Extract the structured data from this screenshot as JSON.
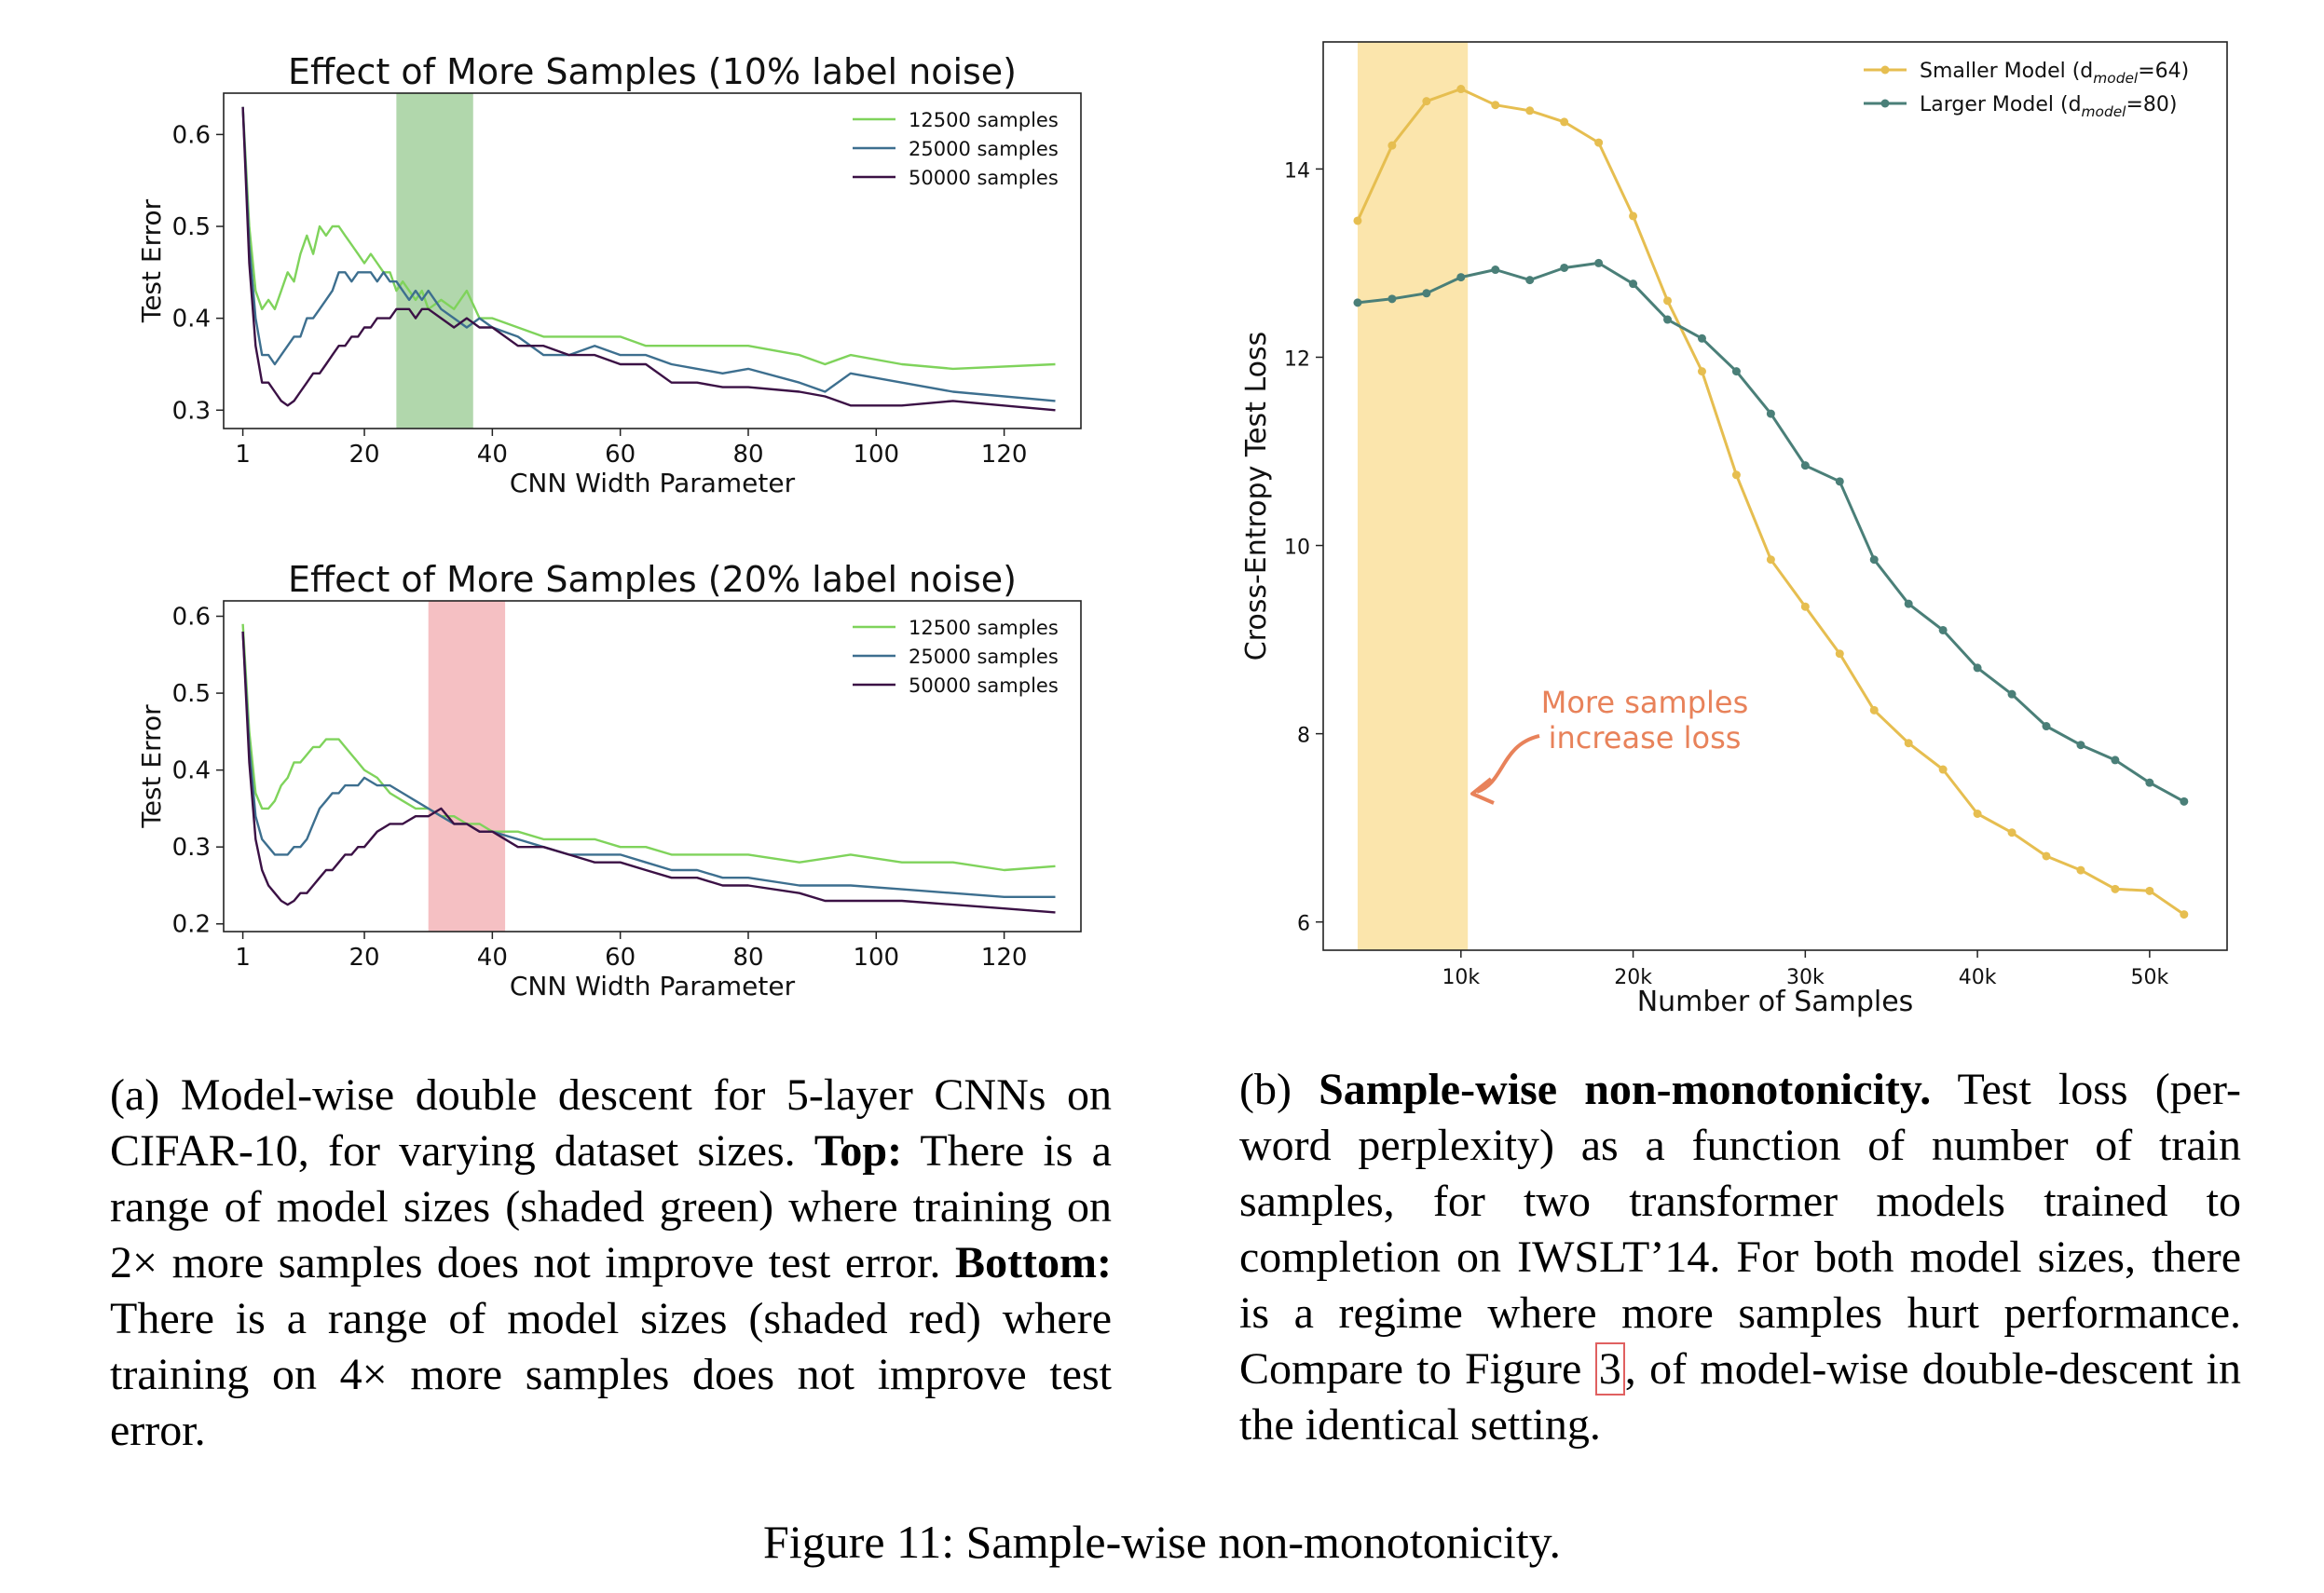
{
  "chart_data": [
    {
      "type": "line",
      "title": "Effect of More Samples (10% label noise)",
      "xlabel": "CNN Width Parameter",
      "ylabel": "Test Error",
      "xlim": [
        -2,
        132
      ],
      "ylim": [
        0.28,
        0.645
      ],
      "xticks": [
        1,
        20,
        40,
        60,
        80,
        100,
        120
      ],
      "yticks": [
        0.3,
        0.4,
        0.5,
        0.6
      ],
      "legend": "top-right",
      "shaded_region": {
        "x": [
          25,
          37
        ],
        "color": "#a9d3a3"
      },
      "series": [
        {
          "name": "12500 samples",
          "color": "#7fd35b",
          "x": [
            1,
            2,
            3,
            4,
            5,
            6,
            7,
            8,
            9,
            10,
            11,
            12,
            13,
            14,
            15,
            16,
            17,
            18,
            19,
            20,
            21,
            22,
            23,
            24,
            25,
            26,
            27,
            28,
            29,
            30,
            32,
            34,
            36,
            38,
            40,
            44,
            48,
            52,
            56,
            60,
            64,
            68,
            72,
            76,
            80,
            88,
            92,
            96,
            104,
            112,
            128
          ],
          "y": [
            0.63,
            0.5,
            0.43,
            0.41,
            0.42,
            0.41,
            0.43,
            0.45,
            0.44,
            0.47,
            0.49,
            0.47,
            0.5,
            0.49,
            0.5,
            0.5,
            0.49,
            0.48,
            0.47,
            0.46,
            0.47,
            0.46,
            0.45,
            0.45,
            0.43,
            0.44,
            0.43,
            0.42,
            0.43,
            0.41,
            0.42,
            0.41,
            0.43,
            0.4,
            0.4,
            0.39,
            0.38,
            0.38,
            0.38,
            0.38,
            0.37,
            0.37,
            0.37,
            0.37,
            0.37,
            0.36,
            0.35,
            0.36,
            0.35,
            0.345,
            0.35
          ]
        },
        {
          "name": "25000 samples",
          "color": "#3d6f8f",
          "x": [
            1,
            2,
            3,
            4,
            5,
            6,
            7,
            8,
            9,
            10,
            11,
            12,
            13,
            14,
            15,
            16,
            17,
            18,
            19,
            20,
            21,
            22,
            23,
            24,
            25,
            26,
            27,
            28,
            29,
            30,
            32,
            34,
            36,
            38,
            40,
            44,
            48,
            52,
            56,
            60,
            64,
            68,
            72,
            76,
            80,
            88,
            92,
            96,
            104,
            112,
            128
          ],
          "y": [
            0.63,
            0.48,
            0.4,
            0.36,
            0.36,
            0.35,
            0.36,
            0.37,
            0.38,
            0.38,
            0.4,
            0.4,
            0.41,
            0.42,
            0.43,
            0.45,
            0.45,
            0.44,
            0.45,
            0.45,
            0.45,
            0.44,
            0.45,
            0.44,
            0.44,
            0.43,
            0.42,
            0.43,
            0.42,
            0.43,
            0.41,
            0.4,
            0.39,
            0.4,
            0.39,
            0.38,
            0.36,
            0.36,
            0.37,
            0.36,
            0.36,
            0.35,
            0.345,
            0.34,
            0.345,
            0.33,
            0.32,
            0.34,
            0.33,
            0.32,
            0.31
          ]
        },
        {
          "name": "50000 samples",
          "color": "#3b1145",
          "x": [
            1,
            2,
            3,
            4,
            5,
            6,
            7,
            8,
            9,
            10,
            11,
            12,
            13,
            14,
            15,
            16,
            17,
            18,
            19,
            20,
            21,
            22,
            23,
            24,
            25,
            26,
            27,
            28,
            29,
            30,
            32,
            34,
            36,
            38,
            40,
            44,
            48,
            52,
            56,
            60,
            64,
            68,
            72,
            76,
            80,
            88,
            92,
            96,
            104,
            112,
            128
          ],
          "y": [
            0.63,
            0.46,
            0.37,
            0.33,
            0.33,
            0.32,
            0.31,
            0.305,
            0.31,
            0.32,
            0.33,
            0.34,
            0.34,
            0.35,
            0.36,
            0.37,
            0.37,
            0.38,
            0.38,
            0.39,
            0.39,
            0.4,
            0.4,
            0.4,
            0.41,
            0.41,
            0.41,
            0.4,
            0.41,
            0.41,
            0.4,
            0.39,
            0.4,
            0.39,
            0.39,
            0.37,
            0.37,
            0.36,
            0.36,
            0.35,
            0.35,
            0.33,
            0.33,
            0.325,
            0.325,
            0.32,
            0.315,
            0.305,
            0.305,
            0.31,
            0.3
          ]
        }
      ]
    },
    {
      "type": "line",
      "title": "Effect of More Samples (20% label noise)",
      "xlabel": "CNN Width Parameter",
      "ylabel": "Test Error",
      "xlim": [
        -2,
        132
      ],
      "ylim": [
        0.19,
        0.62
      ],
      "xticks": [
        1,
        20,
        40,
        60,
        80,
        100,
        120
      ],
      "yticks": [
        0.2,
        0.3,
        0.4,
        0.5,
        0.6
      ],
      "legend": "top-right",
      "shaded_region": {
        "x": [
          30,
          42
        ],
        "color": "#f4b9bd"
      },
      "series": [
        {
          "name": "12500 samples",
          "color": "#7fd35b",
          "x": [
            1,
            2,
            3,
            4,
            5,
            6,
            7,
            8,
            9,
            10,
            11,
            12,
            13,
            14,
            15,
            16,
            17,
            18,
            19,
            20,
            22,
            24,
            26,
            28,
            30,
            32,
            34,
            36,
            38,
            40,
            44,
            48,
            52,
            56,
            60,
            64,
            68,
            72,
            76,
            80,
            88,
            92,
            96,
            104,
            112,
            120,
            128
          ],
          "y": [
            0.59,
            0.45,
            0.37,
            0.35,
            0.35,
            0.36,
            0.38,
            0.39,
            0.41,
            0.41,
            0.42,
            0.43,
            0.43,
            0.44,
            0.44,
            0.44,
            0.43,
            0.42,
            0.41,
            0.4,
            0.39,
            0.37,
            0.36,
            0.35,
            0.35,
            0.34,
            0.34,
            0.33,
            0.33,
            0.32,
            0.32,
            0.31,
            0.31,
            0.31,
            0.3,
            0.3,
            0.29,
            0.29,
            0.29,
            0.29,
            0.28,
            0.285,
            0.29,
            0.28,
            0.28,
            0.27,
            0.275
          ]
        },
        {
          "name": "25000 samples",
          "color": "#3d6f8f",
          "x": [
            1,
            2,
            3,
            4,
            5,
            6,
            7,
            8,
            9,
            10,
            11,
            12,
            13,
            14,
            15,
            16,
            17,
            18,
            19,
            20,
            22,
            24,
            26,
            28,
            30,
            32,
            34,
            36,
            38,
            40,
            44,
            48,
            52,
            56,
            60,
            64,
            68,
            72,
            76,
            80,
            88,
            92,
            96,
            104,
            112,
            120,
            128
          ],
          "y": [
            0.58,
            0.43,
            0.34,
            0.31,
            0.3,
            0.29,
            0.29,
            0.29,
            0.3,
            0.3,
            0.31,
            0.33,
            0.35,
            0.36,
            0.37,
            0.37,
            0.38,
            0.38,
            0.38,
            0.39,
            0.38,
            0.38,
            0.37,
            0.36,
            0.35,
            0.34,
            0.33,
            0.33,
            0.32,
            0.32,
            0.31,
            0.3,
            0.29,
            0.29,
            0.29,
            0.28,
            0.27,
            0.27,
            0.26,
            0.26,
            0.25,
            0.25,
            0.25,
            0.245,
            0.24,
            0.235,
            0.235
          ]
        },
        {
          "name": "50000 samples",
          "color": "#3b1145",
          "x": [
            1,
            2,
            3,
            4,
            5,
            6,
            7,
            8,
            9,
            10,
            11,
            12,
            13,
            14,
            15,
            16,
            17,
            18,
            19,
            20,
            22,
            24,
            26,
            28,
            30,
            32,
            34,
            36,
            38,
            40,
            44,
            48,
            52,
            56,
            60,
            64,
            68,
            72,
            76,
            80,
            88,
            92,
            96,
            104,
            112,
            120,
            128
          ],
          "y": [
            0.58,
            0.41,
            0.31,
            0.27,
            0.25,
            0.24,
            0.23,
            0.225,
            0.23,
            0.24,
            0.24,
            0.25,
            0.26,
            0.27,
            0.27,
            0.28,
            0.29,
            0.29,
            0.3,
            0.3,
            0.32,
            0.33,
            0.33,
            0.34,
            0.34,
            0.35,
            0.33,
            0.33,
            0.32,
            0.32,
            0.3,
            0.3,
            0.29,
            0.28,
            0.28,
            0.27,
            0.26,
            0.26,
            0.25,
            0.25,
            0.24,
            0.23,
            0.23,
            0.23,
            0.225,
            0.22,
            0.215
          ]
        }
      ]
    },
    {
      "type": "line",
      "xlabel": "Number of Samples",
      "ylabel": "Cross-Entropy Test Loss",
      "xlim": [
        2000,
        54500
      ],
      "ylim": [
        5.7,
        15.35
      ],
      "xticks": [
        10000,
        20000,
        30000,
        40000,
        50000
      ],
      "xtick_labels": [
        "10k",
        "20k",
        "30k",
        "40k",
        "50k"
      ],
      "yticks": [
        6,
        8,
        10,
        12,
        14
      ],
      "legend": "top-right",
      "shaded_region": {
        "x": [
          4000,
          10400
        ],
        "color": "#fbe2a3"
      },
      "annotation": {
        "lines": [
          "More samples",
          "increase loss"
        ],
        "color": "#e8825a"
      },
      "series": [
        {
          "name_prefix": "Smaller Model (d",
          "name_sub": "model",
          "name_suffix": "=64)",
          "color": "#e6be50",
          "x": [
            4000,
            6000,
            8000,
            10000,
            12000,
            14000,
            16000,
            18000,
            20000,
            22000,
            24000,
            26000,
            28000,
            30000,
            32000,
            34000,
            36000,
            38000,
            40000,
            42000,
            44000,
            46000,
            48000,
            50000,
            52000
          ],
          "y": [
            13.45,
            14.25,
            14.72,
            14.85,
            14.68,
            14.62,
            14.5,
            14.28,
            13.5,
            12.6,
            11.85,
            10.75,
            9.85,
            9.35,
            8.85,
            8.25,
            7.9,
            7.62,
            7.15,
            6.95,
            6.7,
            6.55,
            6.35,
            6.33,
            6.08
          ]
        },
        {
          "name_prefix": "Larger  Model (d",
          "name_sub": "model",
          "name_suffix": "=80)",
          "color": "#4a7f78",
          "x": [
            4000,
            6000,
            8000,
            10000,
            12000,
            14000,
            16000,
            18000,
            20000,
            22000,
            24000,
            26000,
            28000,
            30000,
            32000,
            34000,
            36000,
            38000,
            40000,
            42000,
            44000,
            46000,
            48000,
            50000,
            52000
          ],
          "y": [
            12.58,
            12.62,
            12.68,
            12.85,
            12.93,
            12.82,
            12.95,
            13.0,
            12.78,
            12.4,
            12.2,
            11.85,
            11.4,
            10.85,
            10.68,
            9.85,
            9.38,
            9.1,
            8.7,
            8.42,
            8.08,
            7.88,
            7.72,
            7.48,
            7.28
          ]
        }
      ]
    }
  ],
  "captions": {
    "a": {
      "prefix": "(a) Model-wise double descent for 5-layer CNNs on CIFAR-10, for varying dataset sizes. ",
      "top_label": "Top:",
      "top_text": " There is a range of model sizes (shaded green) where training on 2× more samples does not improve test error. ",
      "bottom_label": "Bottom:",
      "bottom_text": " There is a range of model sizes (shaded red) where training on 4× more samples does not improve test error."
    },
    "b": {
      "prefix": "(b) ",
      "bold": "Sample-wise non-monotonicity.",
      "text1": " Test loss (per-word perplexity) as a function of number of train samples, for two transformer models trained to completion on IWSLT’14. For both model sizes, there is a regime where more samples hurt performance. Compare to Figure ",
      "ref": "3",
      "text2": ", of model-wise double-descent in the identical setting."
    }
  },
  "figure_title": "Figure 11: Sample-wise non-monotonicity."
}
